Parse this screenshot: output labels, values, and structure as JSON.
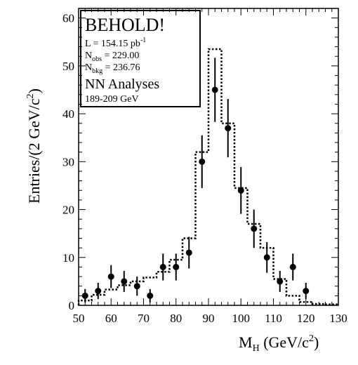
{
  "chart_data": {
    "type": "scatter",
    "xlabel": "M",
    "xlabel_sub": "H",
    "xlabel_unit": "(GeV/c",
    "xlabel_unit_sup": "2",
    "xlabel_close": ")",
    "ylabel": "Entries/(2 GeV/c",
    "ylabel_sup": "2",
    "ylabel_close": ")",
    "xlim": [
      50,
      130
    ],
    "ylim": [
      0,
      62
    ],
    "x_ticks": [
      50,
      60,
      70,
      80,
      90,
      100,
      110,
      120,
      130
    ],
    "y_ticks": [
      0,
      10,
      20,
      30,
      40,
      50,
      60
    ],
    "grid": false,
    "legend": {
      "placement": "top-left",
      "title": "BEHOLD!",
      "lines": [
        {
          "main": "L = 154.15 pb",
          "sup": "-1",
          "sub": "",
          "rest": ""
        },
        {
          "main": "N",
          "sup": "",
          "sub": "obs",
          "rest": " = 229.00"
        },
        {
          "main": "N",
          "sup": "",
          "sub": "bkg",
          "rest": " = 236.76"
        }
      ],
      "analysis": "NN Analyses",
      "energy": "189-209 GeV"
    },
    "series": [
      {
        "type": "points_with_errors",
        "x": [
          52,
          56,
          60,
          64,
          68,
          72,
          76,
          80,
          84,
          88,
          92,
          96,
          100,
          104,
          108,
          112,
          116,
          120
        ],
        "y": [
          2,
          3,
          6,
          5,
          4,
          2,
          8,
          8,
          11,
          30,
          45,
          37,
          24,
          16,
          10,
          5,
          8,
          3
        ],
        "yerr": [
          1.4,
          1.7,
          2.4,
          2.2,
          2.0,
          1.4,
          2.8,
          2.8,
          3.3,
          5.5,
          6.7,
          6.1,
          4.9,
          4.0,
          3.2,
          2.2,
          2.8,
          1.7
        ]
      },
      {
        "type": "step",
        "style": "dotted",
        "edges": [
          50,
          54,
          58,
          62,
          66,
          70,
          74,
          78,
          82,
          86,
          90,
          94,
          98,
          102,
          106,
          110,
          114,
          118,
          122,
          126,
          130
        ],
        "values": [
          1.0,
          2.2,
          3.3,
          4.2,
          5.0,
          5.8,
          7.0,
          9.5,
          14.0,
          32.0,
          53.5,
          38.0,
          24.5,
          17.0,
          12.0,
          5.5,
          2.0,
          0.7,
          0.3,
          0.2
        ]
      }
    ]
  }
}
